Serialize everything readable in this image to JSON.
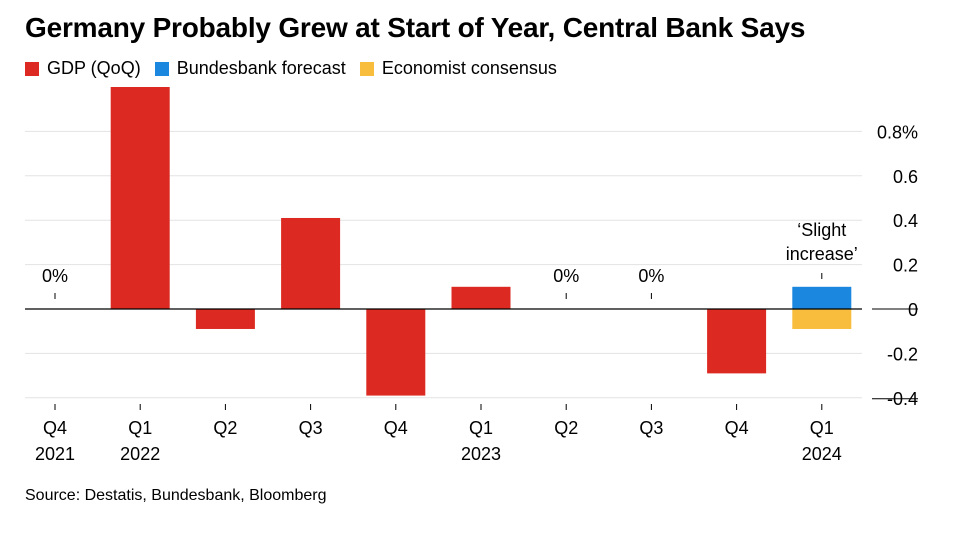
{
  "title": "Germany Probably Grew at Start of Year, Central Bank Says",
  "source": "Source: Destatis, Bundesbank, Bloomberg",
  "colors": {
    "gdp": "#dc2a22",
    "forecast": "#1b87de",
    "consensus": "#f8bd3c",
    "grid": "#e3e3e3",
    "axis": "#000000"
  },
  "legend": [
    {
      "label": "GDP (QoQ)",
      "color": "#dc2a22"
    },
    {
      "label": "Bundesbank forecast",
      "color": "#1b87de"
    },
    {
      "label": "Economist consensus",
      "color": "#f8bd3c"
    }
  ],
  "chart_data": {
    "type": "bar",
    "title": "Germany Probably Grew at Start of Year, Central Bank Says",
    "ylim": [
      -0.4,
      0.9
    ],
    "yticks": [
      0.8,
      0.6,
      0.4,
      0.2,
      0,
      -0.2,
      -0.4
    ],
    "ytick_labels": [
      "0.8%",
      "0.6",
      "0.4",
      "0.2",
      "0",
      "-0.2",
      "-0.4"
    ],
    "grid": true,
    "legend_position": "top-left",
    "categories": [
      {
        "q": "Q4",
        "year": "2021"
      },
      {
        "q": "Q1",
        "year": "2022"
      },
      {
        "q": "Q2",
        "year": ""
      },
      {
        "q": "Q3",
        "year": ""
      },
      {
        "q": "Q4",
        "year": ""
      },
      {
        "q": "Q1",
        "year": "2023"
      },
      {
        "q": "Q2",
        "year": ""
      },
      {
        "q": "Q3",
        "year": ""
      },
      {
        "q": "Q4",
        "year": ""
      },
      {
        "q": "Q1",
        "year": "2024"
      }
    ],
    "series": [
      {
        "name": "GDP (QoQ)",
        "color": "#dc2a22",
        "values": [
          0,
          1.0,
          -0.09,
          0.41,
          -0.39,
          0.1,
          0,
          0,
          -0.29,
          null
        ]
      },
      {
        "name": "Bundesbank forecast",
        "color": "#1b87de",
        "values": [
          null,
          null,
          null,
          null,
          null,
          null,
          null,
          null,
          null,
          0.1
        ]
      },
      {
        "name": "Economist consensus",
        "color": "#f8bd3c",
        "values": [
          null,
          null,
          null,
          null,
          null,
          null,
          null,
          null,
          null,
          -0.09
        ]
      }
    ],
    "zero_labels": [
      {
        "index": 0,
        "text": "0%"
      },
      {
        "index": 6,
        "text": "0%"
      },
      {
        "index": 7,
        "text": "0%"
      }
    ],
    "annotation": {
      "index": 9,
      "lines": [
        "‘Slight",
        "increase’"
      ]
    }
  }
}
